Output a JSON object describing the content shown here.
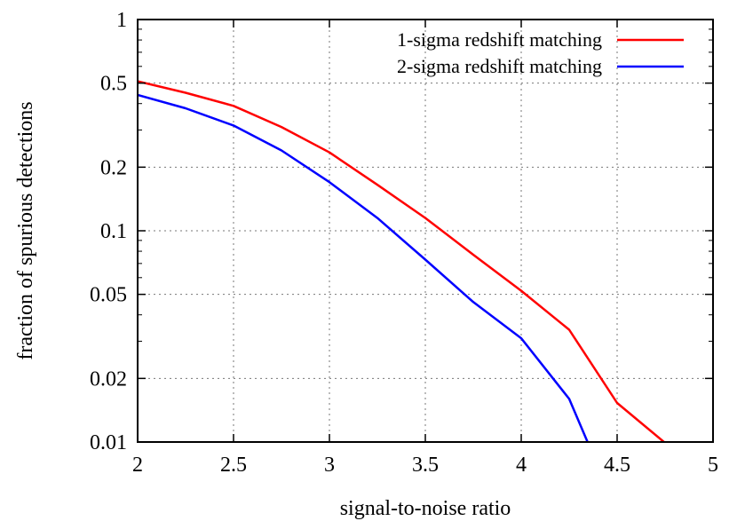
{
  "chart_data": {
    "type": "line",
    "xlabel": "signal-to-noise ratio",
    "ylabel": "fraction of spurious detections",
    "xlim": [
      2,
      5
    ],
    "ylim": [
      0.01,
      1
    ],
    "yscale": "log",
    "grid": true,
    "legend_position": "top-right",
    "x_ticks": [
      2,
      2.5,
      3,
      3.5,
      4,
      4.5,
      5
    ],
    "x_tick_labels": [
      "2",
      "2.5",
      "3",
      "3.5",
      "4",
      "4.5",
      "5"
    ],
    "y_ticks": [
      0.01,
      0.02,
      0.05,
      0.1,
      0.2,
      0.5,
      1
    ],
    "y_tick_labels": [
      "0.01",
      "0.02",
      "0.05",
      "0.1",
      "0.2",
      "0.5",
      "1"
    ],
    "series": [
      {
        "name": "1-sigma redshift matching",
        "color": "#ff0000",
        "x": [
          2,
          2.25,
          2.5,
          2.75,
          3,
          3.25,
          3.5,
          3.75,
          4,
          4.25,
          4.5,
          4.75
        ],
        "y": [
          0.51,
          0.45,
          0.39,
          0.31,
          0.235,
          0.165,
          0.115,
          0.077,
          0.052,
          0.034,
          0.0153,
          0.0099
        ]
      },
      {
        "name": "2-sigma redshift matching",
        "color": "#0000ff",
        "x": [
          2,
          2.25,
          2.5,
          2.75,
          3,
          3.25,
          3.5,
          3.75,
          4,
          4.25,
          4.35
        ],
        "y": [
          0.44,
          0.38,
          0.315,
          0.24,
          0.17,
          0.115,
          0.073,
          0.046,
          0.031,
          0.016,
          0.0098
        ]
      }
    ]
  }
}
